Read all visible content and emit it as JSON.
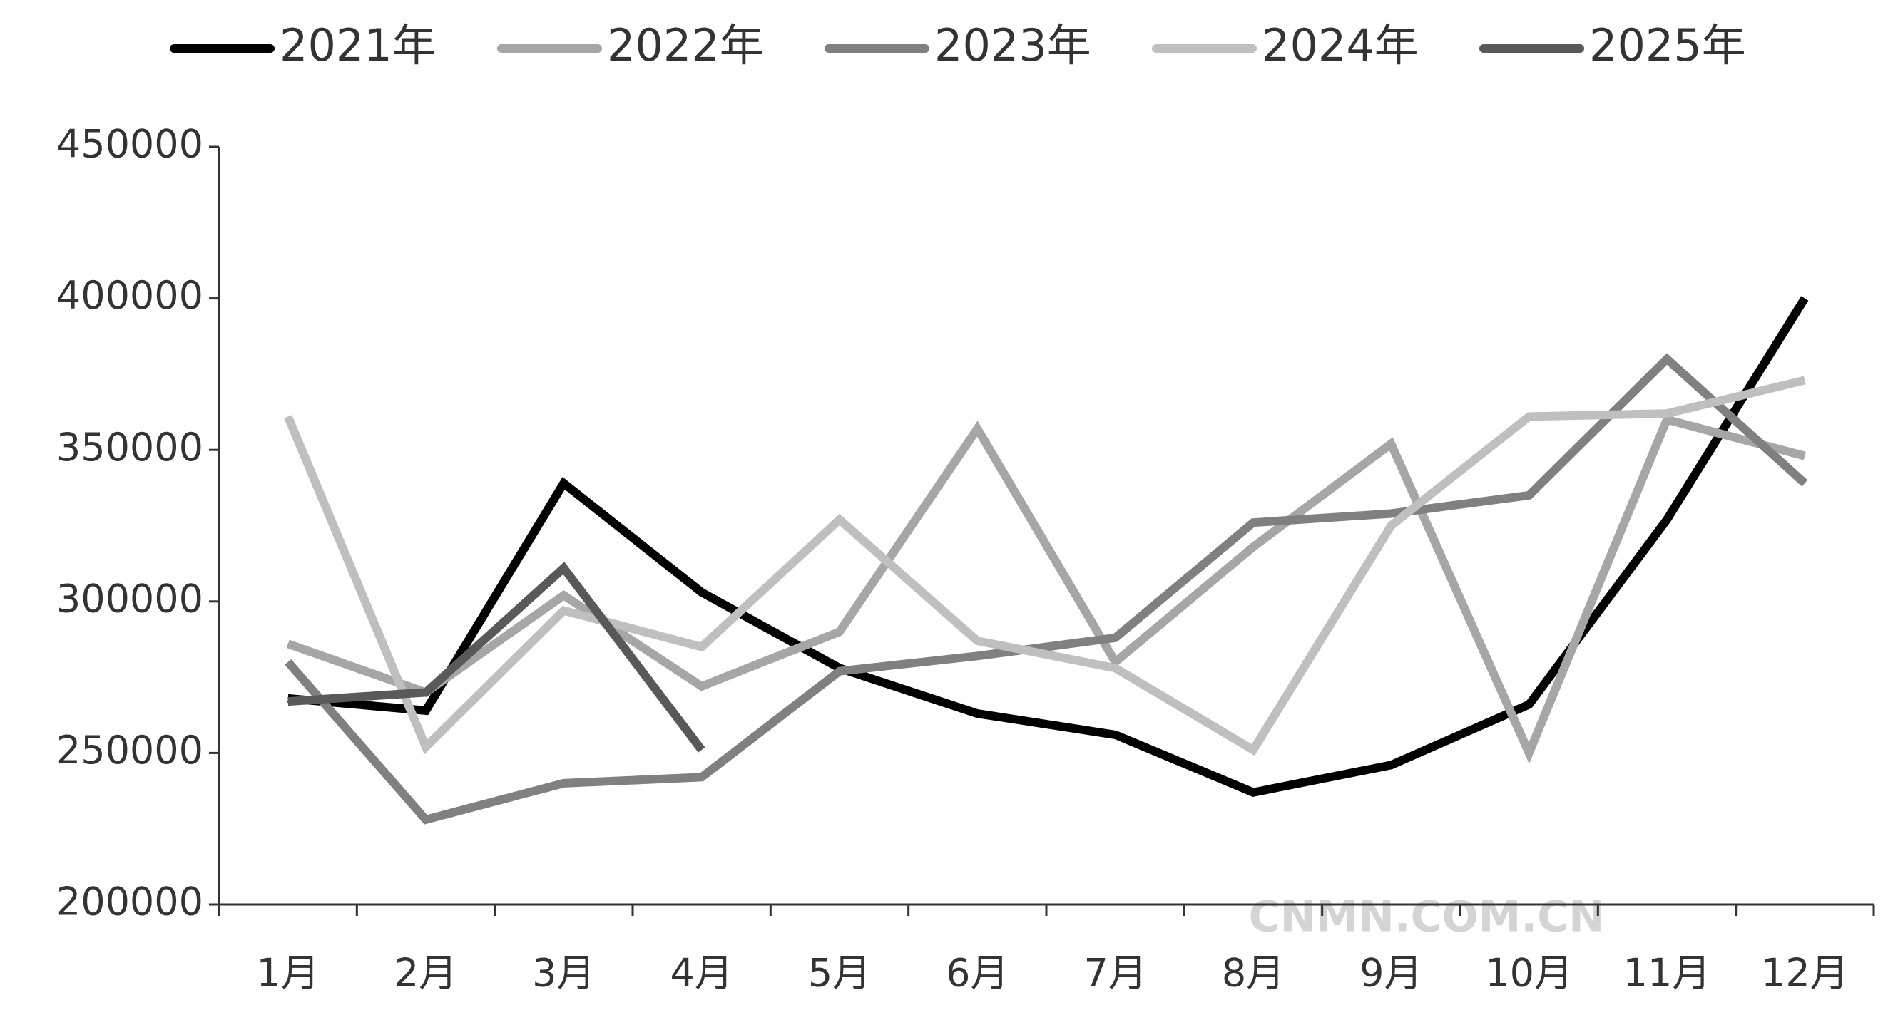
{
  "chart_data": {
    "type": "line",
    "categories": [
      "1月",
      "2月",
      "3月",
      "4月",
      "5月",
      "6月",
      "7月",
      "8月",
      "9月",
      "10月",
      "11月",
      "12月"
    ],
    "series": [
      {
        "name": "2021年",
        "color": "#000000",
        "values": [
          268000,
          264000,
          339000,
          303000,
          278000,
          263000,
          256000,
          237000,
          246000,
          266000,
          327000,
          400000
        ]
      },
      {
        "name": "2022年",
        "color": "#a6a6a6",
        "values": [
          286000,
          270000,
          302000,
          272000,
          290000,
          357000,
          280000,
          318000,
          352000,
          250000,
          360000,
          348000
        ]
      },
      {
        "name": "2023年",
        "color": "#808080",
        "values": [
          280000,
          228000,
          240000,
          242000,
          277000,
          282000,
          288000,
          326000,
          329000,
          335000,
          380000,
          339000
        ]
      },
      {
        "name": "2024年",
        "color": "#bfbfbf",
        "values": [
          361000,
          252000,
          297000,
          285000,
          327000,
          287000,
          278000,
          251000,
          325000,
          361000,
          362000,
          373000
        ]
      },
      {
        "name": "2025年",
        "color": "#595959",
        "values": [
          267000,
          270000,
          311000,
          251000,
          null,
          null,
          null,
          null,
          null,
          null,
          null,
          null
        ]
      }
    ],
    "ylim": [
      200000,
      450000
    ],
    "yticks": [
      200000,
      250000,
      300000,
      350000,
      400000,
      450000
    ],
    "annotations": [
      "CNMN.COM.CN"
    ],
    "legend": "top"
  }
}
